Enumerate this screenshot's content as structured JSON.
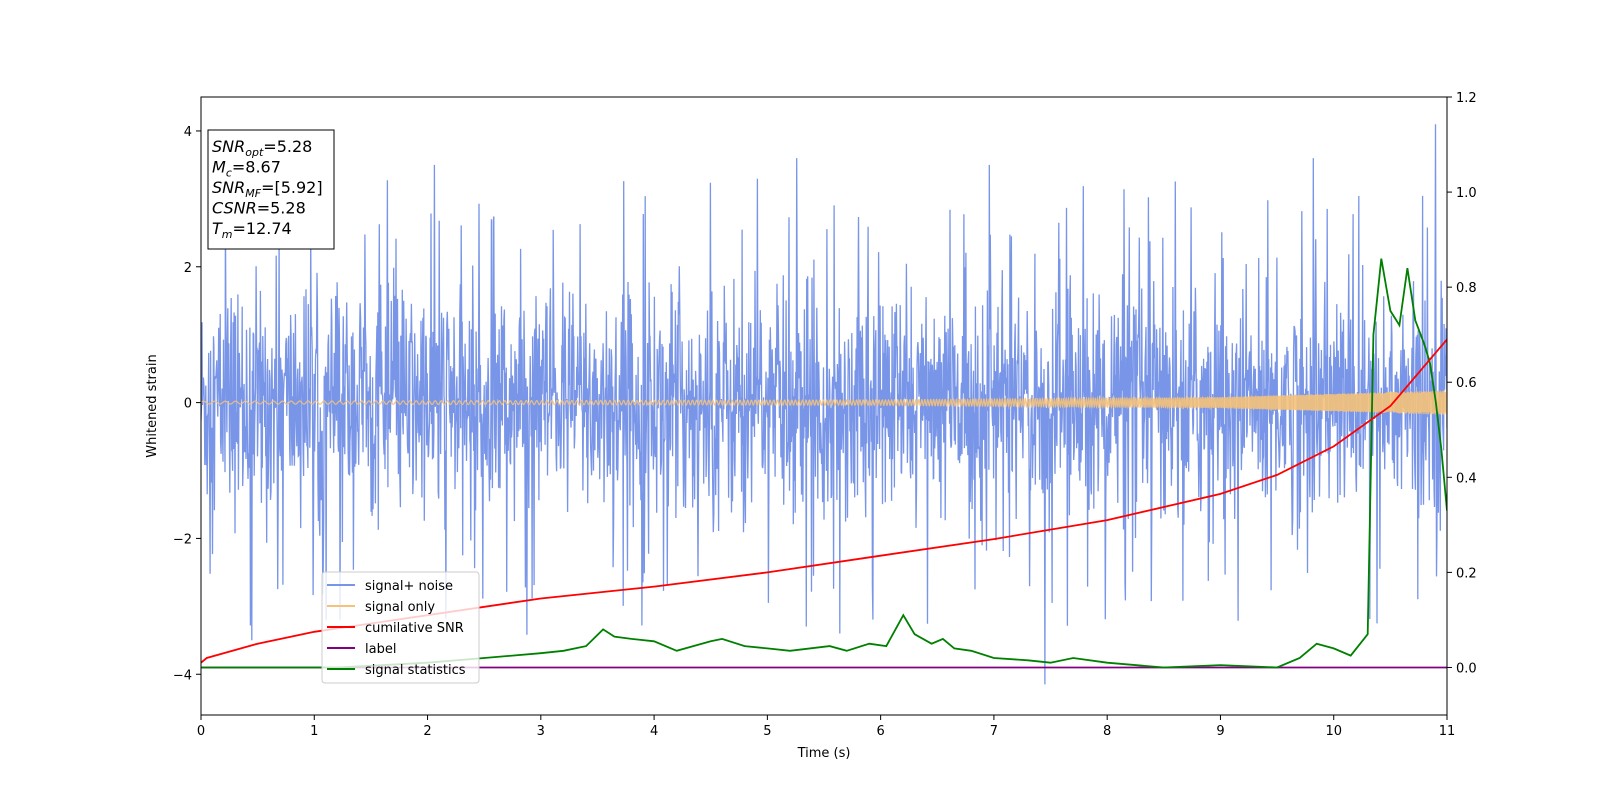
{
  "chart_data": {
    "type": "line",
    "xlabel": "Time (s)",
    "ylabel": "Whitened strain",
    "xlim": [
      0,
      11
    ],
    "ylim_left": [
      -4.6,
      4.5
    ],
    "ylim_right": [
      -0.1,
      1.2
    ],
    "x_ticks": [
      0,
      1,
      2,
      3,
      4,
      5,
      6,
      7,
      8,
      9,
      10,
      11
    ],
    "y_ticks_left": [
      -4,
      -2,
      0,
      2,
      4
    ],
    "y_ticks_right": [
      0.0,
      0.2,
      0.4,
      0.6,
      0.8,
      1.0,
      1.2
    ],
    "y_tick_labels_left": [
      "−4",
      "−2",
      "0",
      "2",
      "4"
    ],
    "y_tick_labels_right": [
      "0.0",
      "0.2",
      "0.4",
      "0.6",
      "0.8",
      "1.0",
      "1.2"
    ],
    "grid": false,
    "legend_position": "lower-left",
    "series": [
      {
        "name": "signal+ noise",
        "axis": "left",
        "color": "#7895e8",
        "style": "dense noise, roughly ±1.8 typical amplitude with spikes to about ±3.5; max ~4.1 near t=10.9",
        "notable_peaks": [
          [
            0.45,
            -3.5
          ],
          [
            2.06,
            3.5
          ],
          [
            5.26,
            3.6
          ],
          [
            5.64,
            -3.4
          ],
          [
            6.96,
            3.5
          ],
          [
            7.45,
            -4.15
          ],
          [
            9.82,
            3.6
          ],
          [
            10.9,
            4.1
          ]
        ]
      },
      {
        "name": "signal only",
        "axis": "left",
        "color": "#f5c27a",
        "style": "chirp oscillation growing in amplitude",
        "amplitude_points": [
          [
            0,
            0.02
          ],
          [
            6,
            0.04
          ],
          [
            9,
            0.08
          ],
          [
            10,
            0.13
          ],
          [
            11,
            0.18
          ]
        ]
      },
      {
        "name": "cumilative SNR",
        "axis": "right",
        "color": "#ff0000",
        "x": [
          0,
          0.05,
          0.5,
          1,
          2,
          3,
          4,
          5,
          6,
          7,
          8,
          9,
          9.5,
          10,
          10.5,
          11
        ],
        "y": [
          0.01,
          0.02,
          0.05,
          0.075,
          0.11,
          0.145,
          0.17,
          0.2,
          0.235,
          0.27,
          0.31,
          0.365,
          0.405,
          0.465,
          0.55,
          0.69
        ]
      },
      {
        "name": "label",
        "axis": "right",
        "color": "#800080",
        "x": [
          0,
          11
        ],
        "y": [
          0.0,
          0.0
        ]
      },
      {
        "name": "signal statistics",
        "axis": "right",
        "color": "#008000",
        "x": [
          0,
          1.2,
          2.0,
          2.5,
          3.0,
          3.2,
          3.4,
          3.55,
          3.65,
          3.8,
          4.0,
          4.2,
          4.5,
          4.6,
          4.8,
          5.0,
          5.2,
          5.55,
          5.7,
          5.9,
          6.05,
          6.2,
          6.3,
          6.45,
          6.55,
          6.65,
          6.8,
          7.0,
          7.3,
          7.5,
          7.7,
          8.0,
          8.5,
          9.0,
          9.5,
          9.7,
          9.85,
          10.0,
          10.15,
          10.3,
          10.35,
          10.42,
          10.5,
          10.58,
          10.65,
          10.72,
          10.8,
          10.85,
          10.9,
          10.95,
          11.0
        ],
        "y": [
          0.0,
          0.0,
          0.01,
          0.02,
          0.03,
          0.035,
          0.045,
          0.08,
          0.065,
          0.06,
          0.055,
          0.035,
          0.055,
          0.06,
          0.045,
          0.04,
          0.035,
          0.045,
          0.035,
          0.05,
          0.045,
          0.11,
          0.07,
          0.05,
          0.06,
          0.04,
          0.035,
          0.02,
          0.015,
          0.01,
          0.02,
          0.01,
          0.0,
          0.005,
          0.0,
          0.02,
          0.05,
          0.04,
          0.025,
          0.07,
          0.7,
          0.86,
          0.75,
          0.72,
          0.84,
          0.73,
          0.68,
          0.64,
          0.56,
          0.46,
          0.33
        ]
      }
    ],
    "annotation": [
      {
        "base": "SNR",
        "sub": "opt",
        "value": "=5.28"
      },
      {
        "base": "M",
        "sub": "c",
        "value": "=8.67"
      },
      {
        "base": "SNR",
        "sub": "MF",
        "value": "=[5.92]"
      },
      {
        "base": "CSNR",
        "sub": "",
        "value": "=5.28"
      },
      {
        "base": "T",
        "sub": "m",
        "value": "=12.74"
      }
    ]
  }
}
